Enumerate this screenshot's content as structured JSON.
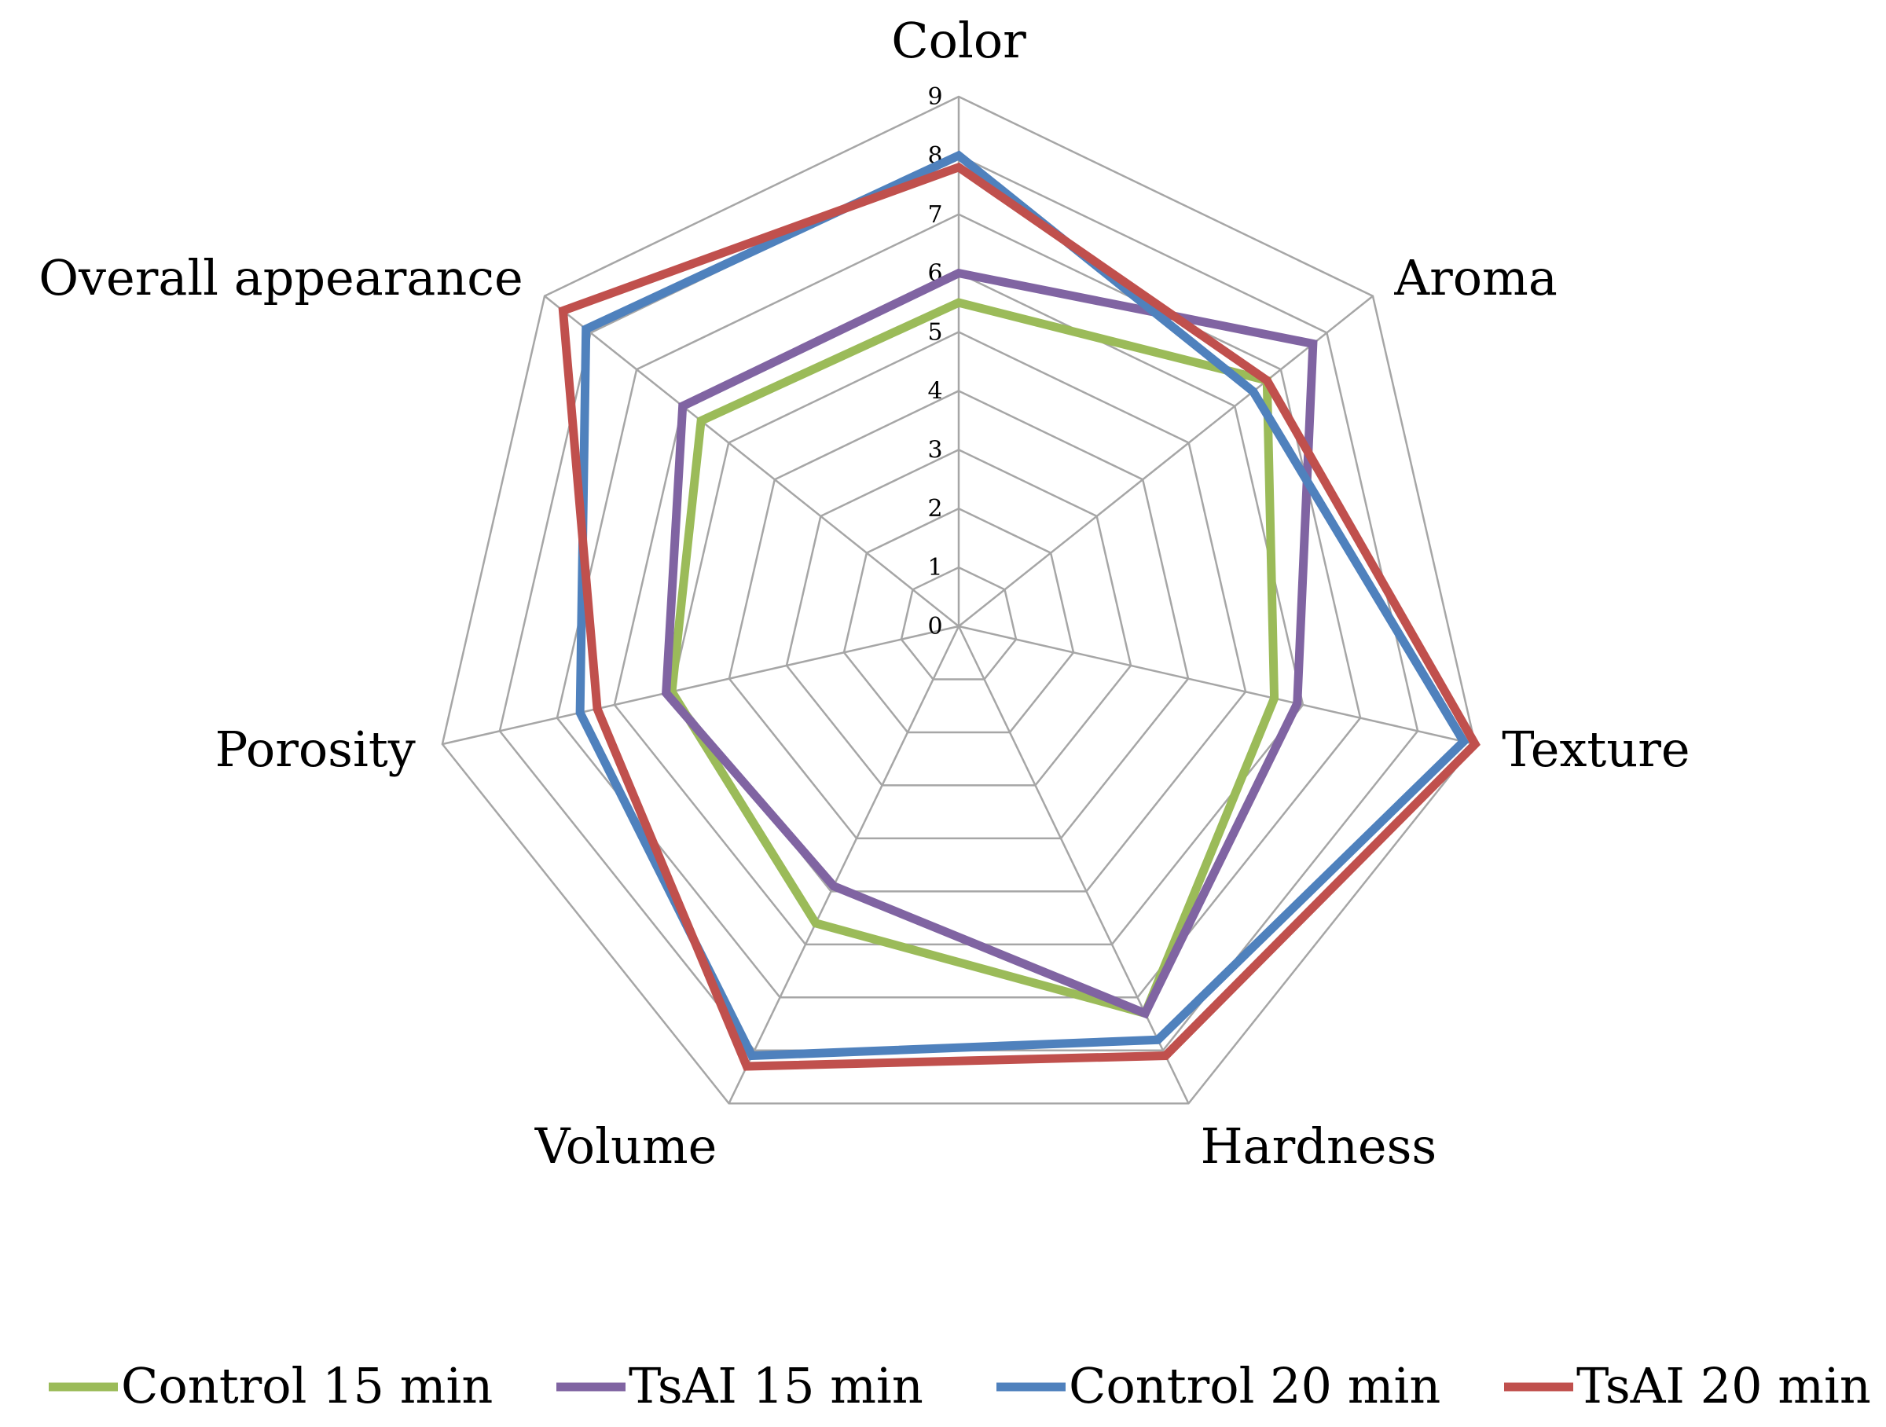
{
  "chart_data": {
    "type": "radar",
    "categories": [
      "Color",
      "Aroma",
      "Texture",
      "Hardness",
      "Volume",
      "Porosity",
      "Overall appearance"
    ],
    "rlim": [
      0,
      9
    ],
    "ticks": [
      "0",
      "1",
      "2",
      "3",
      "4",
      "5",
      "6",
      "7",
      "8",
      "9"
    ],
    "grid": true,
    "legend_position": "bottom",
    "series": [
      {
        "name": "Control 15 min",
        "color": "#9bbb59",
        "values": [
          5.5,
          6.7,
          5.5,
          7.3,
          5.6,
          5.0,
          5.6
        ]
      },
      {
        "name": "TsAI 15 min",
        "color": "#8064a2",
        "values": [
          6.0,
          7.7,
          5.9,
          7.3,
          4.9,
          5.1,
          6.0
        ]
      },
      {
        "name": "Control 20 min",
        "color": "#4f81bd",
        "values": [
          8.0,
          6.4,
          8.8,
          7.8,
          8.1,
          6.6,
          8.1
        ]
      },
      {
        "name": "TsAI 20 min",
        "color": "#c0504d",
        "values": [
          7.8,
          6.7,
          9.0,
          8.1,
          8.3,
          6.3,
          8.6
        ]
      }
    ]
  }
}
